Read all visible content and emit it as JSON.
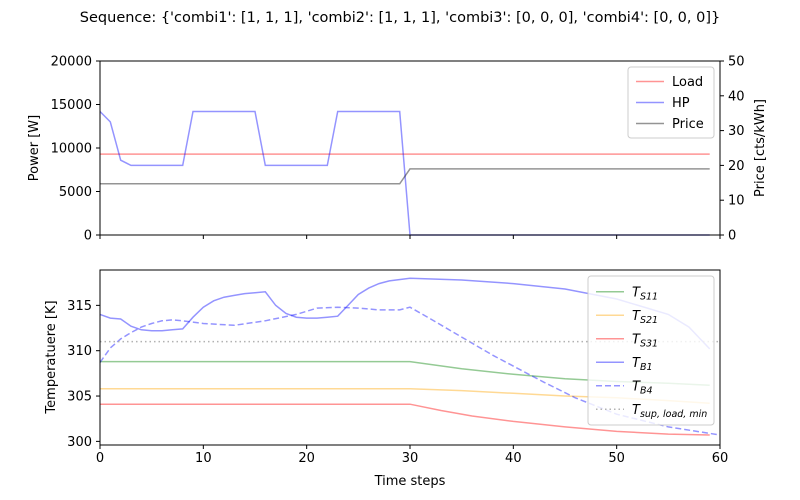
{
  "title": "Sequence: {'combi1': [1, 1, 1], 'combi2': [1, 1, 1], 'combi3': [0, 0, 0], 'combi4': [0, 0, 0]}",
  "chart_data": [
    {
      "type": "line",
      "ylabel": "Power [W]",
      "y2label": "Price [cts/kWh]",
      "xlim": [
        0,
        60
      ],
      "ylim": [
        0,
        20000
      ],
      "y2lim": [
        0,
        50
      ],
      "xticks": [
        "0",
        "10",
        "20",
        "30",
        "40",
        "50",
        "60"
      ],
      "yticks": [
        "0",
        "5000",
        "10000",
        "15000",
        "20000"
      ],
      "y2ticks": [
        "0",
        "10",
        "20",
        "30",
        "40",
        "50"
      ],
      "legend_position": "top-right",
      "series": [
        {
          "name": "Load",
          "color": "#ff0000",
          "axis": "left",
          "x": [
            0,
            59
          ],
          "y": [
            9300,
            9300
          ]
        },
        {
          "name": "HP",
          "color": "#0000ff",
          "axis": "left",
          "x": [
            0,
            1,
            2,
            3,
            4,
            5,
            6,
            7,
            8,
            9,
            10,
            11,
            12,
            13,
            14,
            15,
            16,
            17,
            18,
            19,
            20,
            21,
            22,
            23,
            24,
            25,
            26,
            27,
            28,
            29,
            30,
            31,
            35,
            40,
            45,
            50,
            55,
            59
          ],
          "y": [
            14200,
            13000,
            8600,
            8000,
            8000,
            8000,
            8000,
            8000,
            8000,
            14200,
            14200,
            14200,
            14200,
            14200,
            14200,
            14200,
            8000,
            8000,
            8000,
            8000,
            8000,
            8000,
            8000,
            14200,
            14200,
            14200,
            14200,
            14200,
            14200,
            14200,
            0,
            0,
            0,
            0,
            0,
            0,
            0,
            0
          ]
        },
        {
          "name": "Price",
          "color": "#000000",
          "axis": "right",
          "x": [
            0,
            29,
            30,
            59
          ],
          "y": [
            14.7,
            14.7,
            19,
            19
          ]
        }
      ]
    },
    {
      "type": "line",
      "xlabel": "Time steps",
      "ylabel": "Temperatuere [K]",
      "xlim": [
        0,
        60
      ],
      "ylim": [
        299.6,
        318.9
      ],
      "xticks": [
        "0",
        "10",
        "20",
        "30",
        "40",
        "50",
        "60"
      ],
      "yticks": [
        "300",
        "305",
        "310",
        "315"
      ],
      "legend_position": "top-right",
      "series": [
        {
          "name": "T_S11",
          "legend_main": "T",
          "legend_sub": "S11",
          "color": "#008000",
          "style": "solid",
          "x": [
            0,
            30,
            35,
            40,
            45,
            50,
            55,
            59
          ],
          "y": [
            308.8,
            308.8,
            308.0,
            307.4,
            306.9,
            306.6,
            306.4,
            306.2
          ]
        },
        {
          "name": "T_S21",
          "legend_main": "T",
          "legend_sub": "S21",
          "color": "#ffa500",
          "style": "solid",
          "x": [
            0,
            30,
            35,
            40,
            45,
            50,
            55,
            59
          ],
          "y": [
            305.8,
            305.8,
            305.6,
            305.3,
            305.0,
            304.8,
            304.5,
            304.2
          ]
        },
        {
          "name": "T_S31",
          "legend_main": "T",
          "legend_sub": "S31",
          "color": "#ff0000",
          "style": "solid",
          "x": [
            0,
            30,
            33,
            36,
            40,
            45,
            50,
            55,
            59
          ],
          "y": [
            304.1,
            304.1,
            303.4,
            302.8,
            302.2,
            301.6,
            301.1,
            300.8,
            300.7
          ]
        },
        {
          "name": "T_B1",
          "legend_main": "T",
          "legend_sub": "B1",
          "color": "#0000ff",
          "style": "solid",
          "x": [
            0,
            1,
            2,
            3,
            4,
            5,
            6,
            7,
            8,
            9,
            10,
            11,
            12,
            13,
            14,
            15,
            16,
            17,
            18,
            19,
            20,
            21,
            22,
            23,
            24,
            25,
            26,
            27,
            28,
            30,
            35,
            40,
            45,
            50,
            55,
            57,
            59
          ],
          "y": [
            314.0,
            313.6,
            313.5,
            312.7,
            312.3,
            312.2,
            312.2,
            312.3,
            312.4,
            313.7,
            314.8,
            315.5,
            315.9,
            316.1,
            316.3,
            316.4,
            316.5,
            315.0,
            314.1,
            313.7,
            313.6,
            313.6,
            313.7,
            313.8,
            315.0,
            316.2,
            316.9,
            317.4,
            317.7,
            318.0,
            317.8,
            317.4,
            316.8,
            315.7,
            314.0,
            312.6,
            310.2
          ]
        },
        {
          "name": "T_B4",
          "legend_main": "T",
          "legend_sub": "B4",
          "color": "#0000ff",
          "style": "dashed",
          "x": [
            0,
            1,
            2,
            3,
            4,
            5,
            6,
            7,
            8,
            10,
            13,
            16,
            19,
            21,
            23,
            25,
            27,
            29,
            30,
            32,
            35,
            38,
            40,
            43,
            46,
            50,
            55,
            60
          ],
          "y": [
            308.7,
            310.3,
            311.3,
            312.0,
            312.6,
            313.0,
            313.3,
            313.4,
            313.3,
            313.0,
            312.8,
            313.3,
            314.0,
            314.7,
            314.8,
            314.7,
            314.5,
            314.5,
            314.8,
            313.5,
            311.5,
            309.5,
            308.3,
            306.5,
            304.8,
            303.0,
            301.6,
            300.7
          ]
        },
        {
          "name": "T_sup,load,min",
          "legend_main": "T",
          "legend_sub": "sup, load, min",
          "color": "#aaaaaa",
          "style": "dotted",
          "x": [
            0,
            60
          ],
          "y": [
            311.0,
            311.0
          ]
        }
      ]
    }
  ]
}
